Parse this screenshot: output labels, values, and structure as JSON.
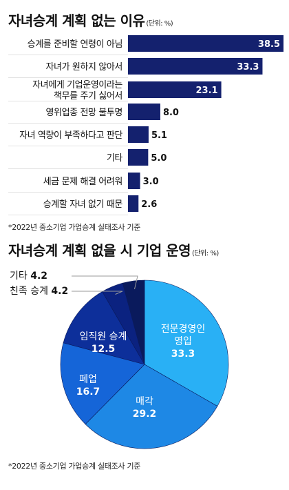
{
  "colors": {
    "navy": "#14216e",
    "pie_dark": "#0a1a5c",
    "pie_mid": "#0d2f9a",
    "pie_blue": "#1565d8",
    "pie_medium": "#1e88e5",
    "pie_light": "#29b0f5"
  },
  "chart_data": [
    {
      "type": "bar",
      "title": "자녀승계 계획 없는 이유",
      "unit": "(단위: %)",
      "categories": [
        "승계를 준비할 연령이 아님",
        "자녀가 원하지 않아서",
        "자녀에게 기업운영이라는 책무를 주기 싫어서",
        "영위업종 전망 불투명",
        "자녀 역량이 부족하다고 판단",
        "기타",
        "세금 문제 해결 어려워",
        "승계할 자녀 없기 때문"
      ],
      "label_lines": [
        [
          "승계를 준비할 연령이 아님"
        ],
        [
          "자녀가 원하지 않아서"
        ],
        [
          "자녀에게 기업운영이라는",
          "책무를 주기 싫어서"
        ],
        [
          "영위업종 전망 불투명"
        ],
        [
          "자녀 역량이 부족하다고 판단"
        ],
        [
          "기타"
        ],
        [
          "세금 문제 해결 어려워"
        ],
        [
          "승계할 자녀 없기 때문"
        ]
      ],
      "values": [
        38.5,
        33.3,
        23.1,
        8.0,
        5.1,
        5.0,
        3.0,
        2.6
      ],
      "value_labels": [
        "38.5",
        "33.3",
        "23.1",
        "8.0",
        "5.1",
        "5.0",
        "3.0",
        "2.6"
      ],
      "xlim": [
        0,
        38.5
      ],
      "note": "*2022년 중소기업 가업승계 실태조사 기준"
    },
    {
      "type": "pie",
      "title": "자녀승계 계획 없을 시 기업 운영",
      "unit": "(단위: %)",
      "slices": [
        {
          "label": "전문경영인 영입",
          "label_lines": [
            "전문경영인",
            "영입"
          ],
          "value": 33.3,
          "value_label": "33.3",
          "color": "#29b0f5"
        },
        {
          "label": "매각",
          "label_lines": [
            "매각"
          ],
          "value": 29.2,
          "value_label": "29.2",
          "color": "#1e88e5"
        },
        {
          "label": "폐업",
          "label_lines": [
            "폐업"
          ],
          "value": 16.7,
          "value_label": "16.7",
          "color": "#1565d8"
        },
        {
          "label": "임직원 승계",
          "label_lines": [
            "임직원 승계"
          ],
          "value": 12.5,
          "value_label": "12.5",
          "color": "#0d2f9a"
        },
        {
          "label": "친족 승계",
          "label_lines": [
            "친족 승계"
          ],
          "value": 4.2,
          "value_label": "4.2",
          "color": "#0b2280"
        },
        {
          "label": "기타",
          "label_lines": [
            "기타"
          ],
          "value": 4.2,
          "value_label": "4.2",
          "color": "#0a1a5c"
        }
      ],
      "start": "12 o'clock, clockwise",
      "outside_labels": [
        "기타",
        "친족 승계"
      ],
      "note": "*2022년 중소기업 가업승계 실태조사 기준"
    }
  ]
}
